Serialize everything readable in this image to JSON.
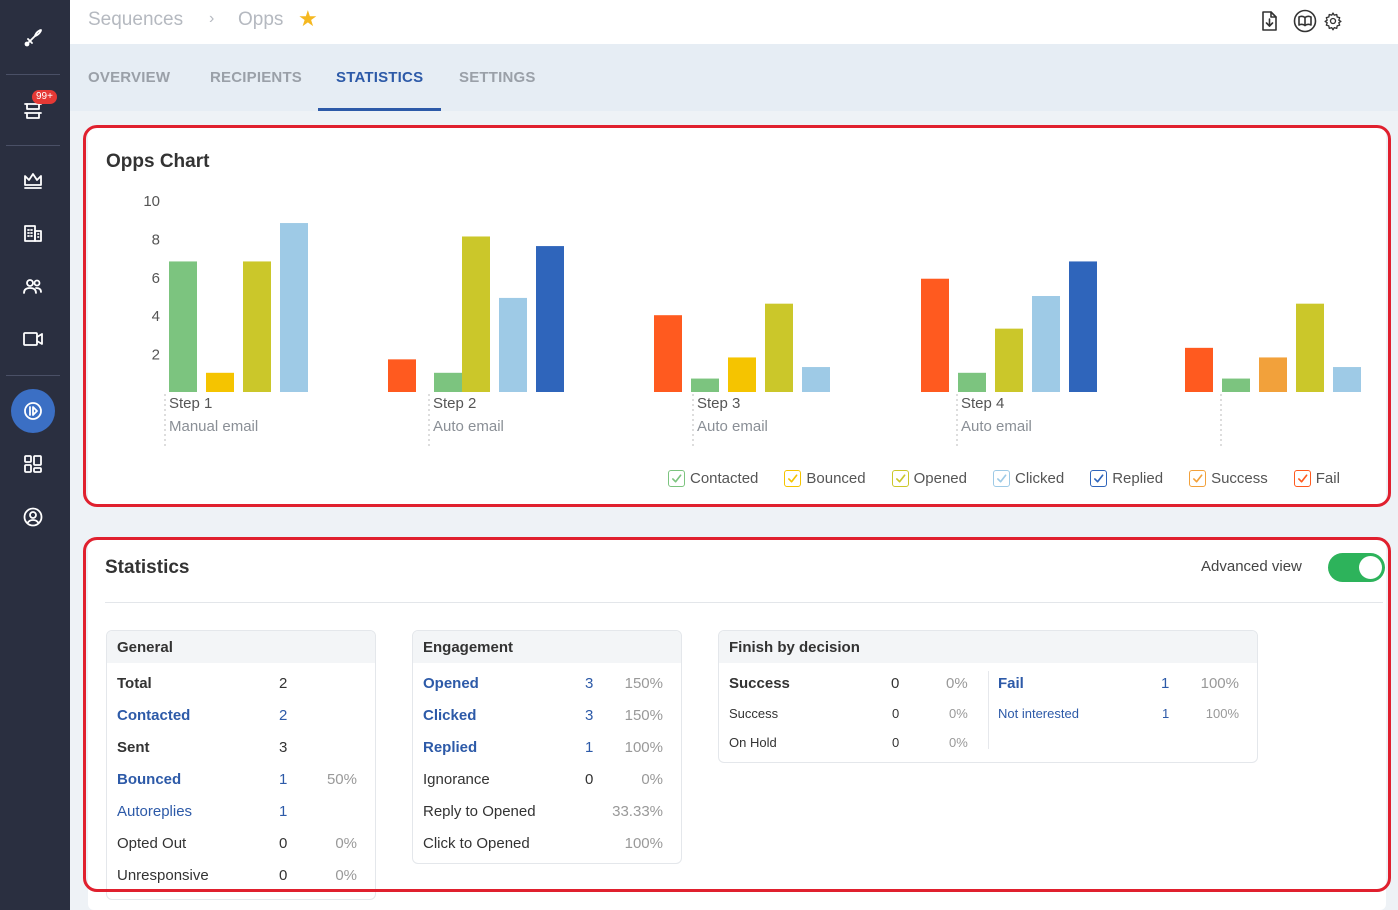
{
  "sidebar": {
    "icons": [
      "logo-icon",
      "tasks-icon",
      "crown-icon",
      "building-icon",
      "people-icon",
      "video-icon",
      "sequence-icon",
      "apps-icon",
      "user-circle-icon"
    ],
    "badge": "99+"
  },
  "header": {
    "breadcrumb_root": "Sequences",
    "breadcrumb_sep": "›",
    "breadcrumb_current": "Opps",
    "favorite_icon": "★"
  },
  "tabs": [
    {
      "label": "OVERVIEW"
    },
    {
      "label": "RECIPIENTS"
    },
    {
      "label": "STATISTICS"
    },
    {
      "label": "SETTINGS"
    }
  ],
  "chart_card": {
    "title": "Opps Chart"
  },
  "chart_data": {
    "type": "bar",
    "title": "Opps Chart",
    "yticks": [
      "10",
      "8",
      "6",
      "4",
      "2"
    ],
    "ylim": [
      0,
      10
    ],
    "categories": [
      {
        "name": "Step 1",
        "sub": "Manual email"
      },
      {
        "name": "Step 2",
        "sub": "Auto email"
      },
      {
        "name": "Step 3",
        "sub": "Auto email"
      },
      {
        "name": "Step 4",
        "sub": "Auto email"
      },
      {
        "name": "",
        "sub": ""
      }
    ],
    "series": [
      {
        "name": "Contacted",
        "color": "#7cc47f"
      },
      {
        "name": "Bounced",
        "color": "#f5c400"
      },
      {
        "name": "Opened",
        "color": "#cbc72a"
      },
      {
        "name": "Clicked",
        "color": "#9ecae6"
      },
      {
        "name": "Replied",
        "color": "#2f65bb"
      },
      {
        "name": "Success",
        "color": "#f2a13b"
      },
      {
        "name": "Fail",
        "color": "#ff5a1f"
      }
    ],
    "bars": [
      [
        {
          "series": "Contacted",
          "value": 6.8
        },
        {
          "series": "Bounced",
          "value": 1.0
        },
        {
          "series": "Opened",
          "value": 6.8
        },
        {
          "series": "Clicked",
          "value": 8.8
        }
      ],
      [
        {
          "series": "Fail",
          "value": 1.7
        },
        {
          "series": "Contacted",
          "value": 1.0
        },
        {
          "series": "Opened",
          "value": 8.1
        },
        {
          "series": "Clicked",
          "value": 4.9
        },
        {
          "series": "Replied",
          "value": 7.6
        }
      ],
      [
        {
          "series": "Fail",
          "value": 4.0
        },
        {
          "series": "Contacted",
          "value": 0.7
        },
        {
          "series": "Bounced",
          "value": 1.8
        },
        {
          "series": "Opened",
          "value": 4.6
        },
        {
          "series": "Clicked",
          "value": 1.3
        }
      ],
      [
        {
          "series": "Fail",
          "value": 5.9
        },
        {
          "series": "Contacted",
          "value": 1.0
        },
        {
          "series": "Opened",
          "value": 3.3
        },
        {
          "series": "Clicked",
          "value": 5.0
        },
        {
          "series": "Replied",
          "value": 6.8
        }
      ],
      [
        {
          "series": "Fail",
          "value": 2.3
        },
        {
          "series": "Contacted",
          "value": 0.7
        },
        {
          "series": "Success",
          "value": 1.8
        },
        {
          "series": "Opened",
          "value": 4.6
        },
        {
          "series": "Clicked",
          "value": 1.3
        }
      ]
    ],
    "legend": [
      {
        "label": "Contacted",
        "color": "#7cc47f"
      },
      {
        "label": "Bounced",
        "color": "#f5c400"
      },
      {
        "label": "Opened",
        "color": "#cbc72a"
      },
      {
        "label": "Clicked",
        "color": "#9ecae6"
      },
      {
        "label": "Replied",
        "color": "#2f65bb"
      },
      {
        "label": "Success",
        "color": "#f2a13b"
      },
      {
        "label": "Fail",
        "color": "#ff5a1f"
      }
    ]
  },
  "stats_card": {
    "title": "Statistics",
    "advanced_view_label": "Advanced view",
    "advanced_view_on": true
  },
  "general": {
    "title": "General",
    "rows": [
      {
        "label": "Total",
        "count": "2",
        "pct": ""
      },
      {
        "label": "Contacted",
        "count": "2",
        "pct": ""
      },
      {
        "label": "Sent",
        "count": "3",
        "pct": ""
      },
      {
        "label": "Bounced",
        "count": "1",
        "pct": "50%"
      },
      {
        "label": "Autoreplies",
        "count": "1",
        "pct": ""
      },
      {
        "label": "Opted Out",
        "count": "0",
        "pct": "0%"
      },
      {
        "label": "Unresponsive",
        "count": "0",
        "pct": "0%"
      }
    ]
  },
  "engagement": {
    "title": "Engagement",
    "rows": [
      {
        "label": "Opened",
        "count": "3",
        "pct": "150%"
      },
      {
        "label": "Clicked",
        "count": "3",
        "pct": "150%"
      },
      {
        "label": "Replied",
        "count": "1",
        "pct": "100%"
      },
      {
        "label": "Ignorance",
        "count": "0",
        "pct": "0%"
      },
      {
        "label": "Reply to Opened",
        "count": "",
        "pct": "33.33%"
      },
      {
        "label": "Click to Opened",
        "count": "",
        "pct": "100%"
      }
    ]
  },
  "finish": {
    "title": "Finish by decision",
    "left": [
      {
        "label": "Success",
        "count": "0",
        "pct": "0%"
      },
      {
        "label": "Success",
        "count": "0",
        "pct": "0%"
      },
      {
        "label": "On Hold",
        "count": "0",
        "pct": "0%"
      }
    ],
    "right": [
      {
        "label": "Fail",
        "count": "1",
        "pct": "100%"
      },
      {
        "label": "Not interested",
        "count": "1",
        "pct": "100%"
      }
    ]
  }
}
